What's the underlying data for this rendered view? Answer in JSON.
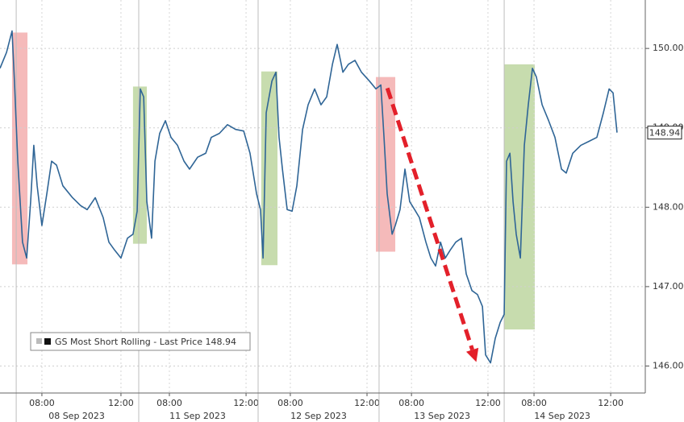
{
  "chart_data": {
    "type": "line",
    "x": [
      0,
      0.33,
      0.61,
      0.73,
      0.9,
      1.14,
      1.35,
      1.55,
      1.71,
      1.88,
      2.12,
      2.37,
      2.61,
      2.86,
      3.18,
      3.67,
      4.08,
      4.41,
      4.82,
      5.22,
      5.51,
      5.8,
      6.12,
      6.45,
      6.73,
      6.94,
      7.1,
      7.27,
      7.43,
      7.67,
      7.84,
      8.08,
      8.37,
      8.65,
      8.98,
      9.31,
      9.59,
      10.0,
      10.41,
      10.69,
      11.1,
      11.51,
      11.92,
      12.33,
      12.65,
      12.98,
      13.18,
      13.31,
      13.47,
      13.76,
      13.96,
      14.12,
      14.29,
      14.53,
      14.78,
      15.02,
      15.31,
      15.59,
      15.92,
      16.24,
      16.53,
      16.82,
      17.06,
      17.35,
      17.63,
      17.96,
      18.29,
      18.69,
      19.02,
      19.27,
      19.43,
      19.59,
      19.84,
      20.0,
      20.24,
      20.49,
      20.73,
      20.98,
      21.22,
      21.55,
      21.8,
      22.04,
      22.29,
      22.53,
      22.78,
      23.06,
      23.35,
      23.59,
      23.88,
      24.16,
      24.41,
      24.57,
      24.82,
      25.06,
      25.31,
      25.51,
      25.63,
      25.8,
      25.96,
      26.12,
      26.33,
      26.53,
      26.73,
      26.94,
      27.14,
      27.43,
      27.76,
      28.08,
      28.41,
      28.65,
      28.98,
      29.39,
      29.8,
      30.2,
      30.53,
      30.82,
      31.02,
      31.22
    ],
    "series": [
      {
        "name": "GS Most Short Rolling - Last Price 148.94",
        "color": "#2f6596",
        "values": [
          149.75,
          149.95,
          150.22,
          149.59,
          148.58,
          147.56,
          147.36,
          148.07,
          148.78,
          148.27,
          147.77,
          148.17,
          148.58,
          148.53,
          148.27,
          148.12,
          148.02,
          147.97,
          148.12,
          147.87,
          147.56,
          147.46,
          147.36,
          147.61,
          147.66,
          147.95,
          149.49,
          149.39,
          148.07,
          147.61,
          148.58,
          148.93,
          149.09,
          148.88,
          148.78,
          148.58,
          148.48,
          148.63,
          148.68,
          148.88,
          148.93,
          149.04,
          148.98,
          148.96,
          148.68,
          148.17,
          147.97,
          147.36,
          149.19,
          149.59,
          149.7,
          148.88,
          148.48,
          147.97,
          147.95,
          148.27,
          148.98,
          149.29,
          149.49,
          149.29,
          149.39,
          149.8,
          150.05,
          149.7,
          149.8,
          149.85,
          149.7,
          149.59,
          149.49,
          149.54,
          148.88,
          148.17,
          147.66,
          147.77,
          147.97,
          148.48,
          148.07,
          147.97,
          147.87,
          147.56,
          147.36,
          147.26,
          147.56,
          147.36,
          147.46,
          147.56,
          147.61,
          147.16,
          146.95,
          146.9,
          146.75,
          146.14,
          146.04,
          146.35,
          146.55,
          146.65,
          148.58,
          148.68,
          148.07,
          147.66,
          147.36,
          148.78,
          149.29,
          149.75,
          149.64,
          149.29,
          149.09,
          148.88,
          148.48,
          148.43,
          148.68,
          148.78,
          148.83,
          148.88,
          149.19,
          149.49,
          149.44,
          148.94
        ]
      }
    ],
    "xlim": [
      0,
      32.65
    ],
    "xticks": [
      {
        "value": 2.12,
        "label": "08:00"
      },
      {
        "value": 6.12,
        "label": "12:00"
      },
      {
        "value": 8.57,
        "label": "08:00"
      },
      {
        "value": 12.45,
        "label": "12:00"
      },
      {
        "value": 14.69,
        "label": "08:00"
      },
      {
        "value": 18.57,
        "label": "12:00"
      },
      {
        "value": 20.82,
        "label": "08:00"
      },
      {
        "value": 24.69,
        "label": "12:00"
      },
      {
        "value": 27.02,
        "label": "08:00"
      },
      {
        "value": 30.9,
        "label": "12:00"
      }
    ],
    "date_labels": [
      {
        "value": 3.88,
        "label": "08 Sep 2023"
      },
      {
        "value": 10.0,
        "label": "11 Sep 2023"
      },
      {
        "value": 16.12,
        "label": "12 Sep 2023"
      },
      {
        "value": 22.37,
        "label": "13 Sep 2023"
      },
      {
        "value": 28.45,
        "label": "14 Sep 2023"
      }
    ],
    "day_separators": [
      0.82,
      7.02,
      13.06,
      19.18,
      25.51
    ],
    "ylim": [
      145.66,
      150.61
    ],
    "yticks": [
      {
        "value": 146,
        "label": "146.00"
      },
      {
        "value": 147,
        "label": "147.00"
      },
      {
        "value": 148,
        "label": "148.00"
      },
      {
        "value": 149,
        "label": "149.00"
      },
      {
        "value": 150,
        "label": "150.00"
      }
    ],
    "grid": true,
    "last_price": 148.94,
    "shaded": [
      {
        "x": [
          0.61,
          1.39
        ],
        "y": [
          147.28,
          150.2
        ],
        "color": "#f2a9a9"
      },
      {
        "x": [
          6.73,
          7.43
        ],
        "y": [
          147.54,
          149.52
        ],
        "color": "#b9d39a"
      },
      {
        "x": [
          13.22,
          14.04
        ],
        "y": [
          147.27,
          149.71
        ],
        "color": "#b9d39a"
      },
      {
        "x": [
          19.02,
          20.0
        ],
        "y": [
          147.44,
          149.64
        ],
        "color": "#f2a9a9"
      },
      {
        "x": [
          25.51,
          27.06
        ],
        "y": [
          146.46,
          149.8
        ],
        "color": "#b9d39a"
      }
    ],
    "arrow": {
      "from": [
        19.6,
        149.5
      ],
      "to": [
        24.1,
        146.05
      ],
      "color": "#e3202a"
    }
  }
}
